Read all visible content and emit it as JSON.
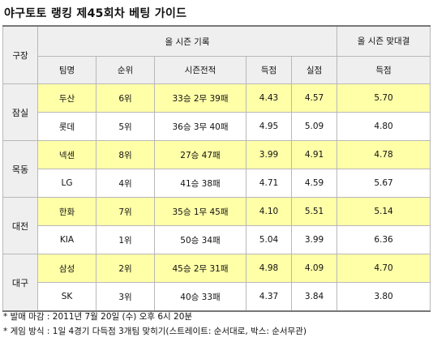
{
  "title": "야구토토 랭킹 제45회차 베팅 가이드",
  "headers": {
    "venue": "구장",
    "season_group": "올 시즌 기록",
    "match_group": "올 시즌 맞대결",
    "team": "팀명",
    "rank": "순위",
    "record": "시즌전적",
    "runs_scored": "득점",
    "runs_allowed": "실점",
    "match_scored": "득점"
  },
  "venues": [
    {
      "venue": "잠실",
      "rows": [
        {
          "team": "두산",
          "rank": "6위",
          "record": "33승 2무 39패",
          "scored": "4.43",
          "allowed": "4.57",
          "match": "5.70"
        },
        {
          "team": "롯데",
          "rank": "5위",
          "record": "36승 3무 40패",
          "scored": "4.95",
          "allowed": "5.09",
          "match": "4.80"
        }
      ]
    },
    {
      "venue": "목동",
      "rows": [
        {
          "team": "넥센",
          "rank": "8위",
          "record": "27승 47패",
          "scored": "3.99",
          "allowed": "4.91",
          "match": "4.78"
        },
        {
          "team": "LG",
          "rank": "4위",
          "record": "41승 38패",
          "scored": "4.71",
          "allowed": "4.59",
          "match": "5.67"
        }
      ]
    },
    {
      "venue": "대전",
      "rows": [
        {
          "team": "한화",
          "rank": "7위",
          "record": "35승 1무 45패",
          "scored": "4.10",
          "allowed": "5.51",
          "match": "5.14"
        },
        {
          "team": "KIA",
          "rank": "1위",
          "record": "50승 34패",
          "scored": "5.04",
          "allowed": "3.99",
          "match": "6.36"
        }
      ]
    },
    {
      "venue": "대구",
      "rows": [
        {
          "team": "삼성",
          "rank": "2위",
          "record": "45승 2무 31패",
          "scored": "4.98",
          "allowed": "4.09",
          "match": "4.70"
        },
        {
          "team": "SK",
          "rank": "3위",
          "record": "40승 33패",
          "scored": "4.37",
          "allowed": "3.84",
          "match": "3.80"
        }
      ]
    }
  ],
  "notes": [
    "* 발매 마감 : 2011년 7월 20일 (수) 오후 6시 20분",
    "* 게임 방식 : 1일 4경기 다득점 3개팀 맞히기(스트레이트: 순서대로, 박스: 순서무관)"
  ],
  "colors": {
    "highlight": "#ffffa8",
    "header_bg": "#efefef",
    "border": "#b8b8b8"
  }
}
